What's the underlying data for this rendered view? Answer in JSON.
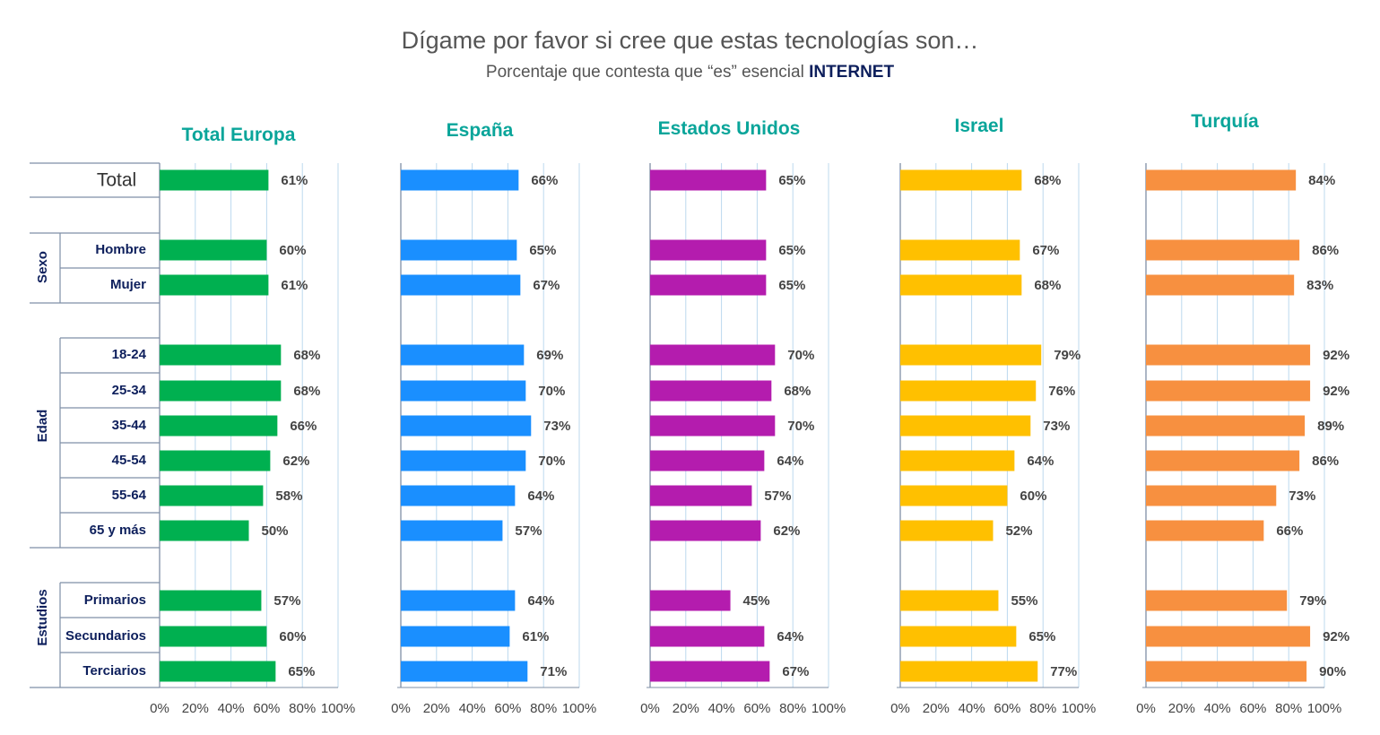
{
  "title": "Dígame por favor si cree que estas tecnologías son…",
  "subtitle_prefix": "Porcentaje que contesta que “es” esencial ",
  "subtitle_strong": "INTERNET",
  "colors": {
    "title_accent": "#0d1f5c",
    "panel_title": "#0aa59a",
    "grid": "#bcd9ee",
    "axis": "#7f8fa6",
    "value_label": "#444444",
    "row_label": "#0d1f5c"
  },
  "chart_data": {
    "type": "bar",
    "orientation": "horizontal",
    "xlim": [
      0,
      100
    ],
    "x_ticks": [
      "0%",
      "20%",
      "40%",
      "60%",
      "80%",
      "100%"
    ],
    "total_label": "Total",
    "groups": [
      {
        "label": "",
        "rows": [
          "Total"
        ]
      },
      {
        "label": "Sexo",
        "rows": [
          "Hombre",
          "Mujer"
        ]
      },
      {
        "label": "Edad",
        "rows": [
          "18-24",
          "25-34",
          "35-44",
          "45-54",
          "55-64",
          "65 y más"
        ]
      },
      {
        "label": "Estudios",
        "rows": [
          "Primarios",
          "Secundarios",
          "Terciarios"
        ]
      }
    ],
    "series": [
      {
        "name": "Total Europa",
        "color": "#00b050",
        "values": [
          61,
          60,
          61,
          68,
          68,
          66,
          62,
          58,
          50,
          57,
          60,
          65
        ],
        "labels": [
          "61%",
          "60%",
          "61%",
          "68%",
          "68%",
          "66%",
          "62%",
          "58%",
          "50%",
          "57%",
          "60%",
          "65%"
        ]
      },
      {
        "name": "España",
        "color": "#1a8fff",
        "values": [
          66,
          65,
          67,
          69,
          70,
          73,
          70,
          64,
          57,
          64,
          61,
          71
        ],
        "labels": [
          "66%",
          "65%",
          "67%",
          "69%",
          "70%",
          "73%",
          "70%",
          "64%",
          "57%",
          "64%",
          "61%",
          "71%"
        ]
      },
      {
        "name": "Estados Unidos",
        "color": "#b41cae",
        "values": [
          65,
          65,
          65,
          70,
          68,
          70,
          64,
          57,
          62,
          45,
          64,
          67
        ],
        "labels": [
          "65%",
          "65%",
          "65%",
          "70%",
          "68%",
          "70%",
          "64%",
          "57%",
          "62%",
          "45%",
          "64%",
          "67%"
        ]
      },
      {
        "name": "Israel",
        "color": "#ffc000",
        "values": [
          68,
          67,
          68,
          79,
          76,
          73,
          64,
          60,
          52,
          55,
          65,
          77
        ],
        "labels": [
          "68%",
          "67%",
          "68%",
          "79%",
          "76%",
          "73%",
          "64%",
          "60%",
          "52%",
          "55%",
          "65%",
          "77%"
        ]
      },
      {
        "name": "Turquía",
        "color": "#f79040",
        "values": [
          84,
          86,
          83,
          92,
          92,
          89,
          86,
          73,
          66,
          79,
          92,
          90
        ],
        "labels": [
          "84%",
          "86%",
          "83%",
          "92%",
          "92%",
          "89%",
          "86%",
          "73%",
          "66%",
          "79%",
          "92%",
          "90%"
        ]
      }
    ]
  }
}
